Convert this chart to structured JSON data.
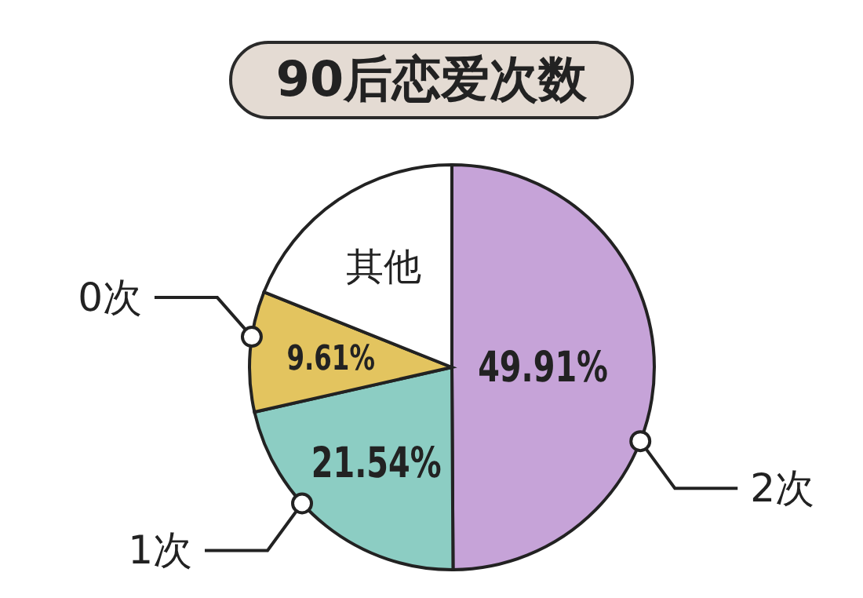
{
  "chart_data": {
    "type": "pie",
    "title": "90后恋爱次数",
    "categories": [
      "2次",
      "1次",
      "0次",
      "其他"
    ],
    "values": [
      49.91,
      21.54,
      9.61,
      18.94
    ],
    "colors": [
      "#c6a3d8",
      "#8ccdc3",
      "#e3c45f",
      "#ffffff"
    ],
    "value_labels": [
      "49.91%",
      "21.54%",
      "9.61%",
      null
    ],
    "legend": false
  }
}
